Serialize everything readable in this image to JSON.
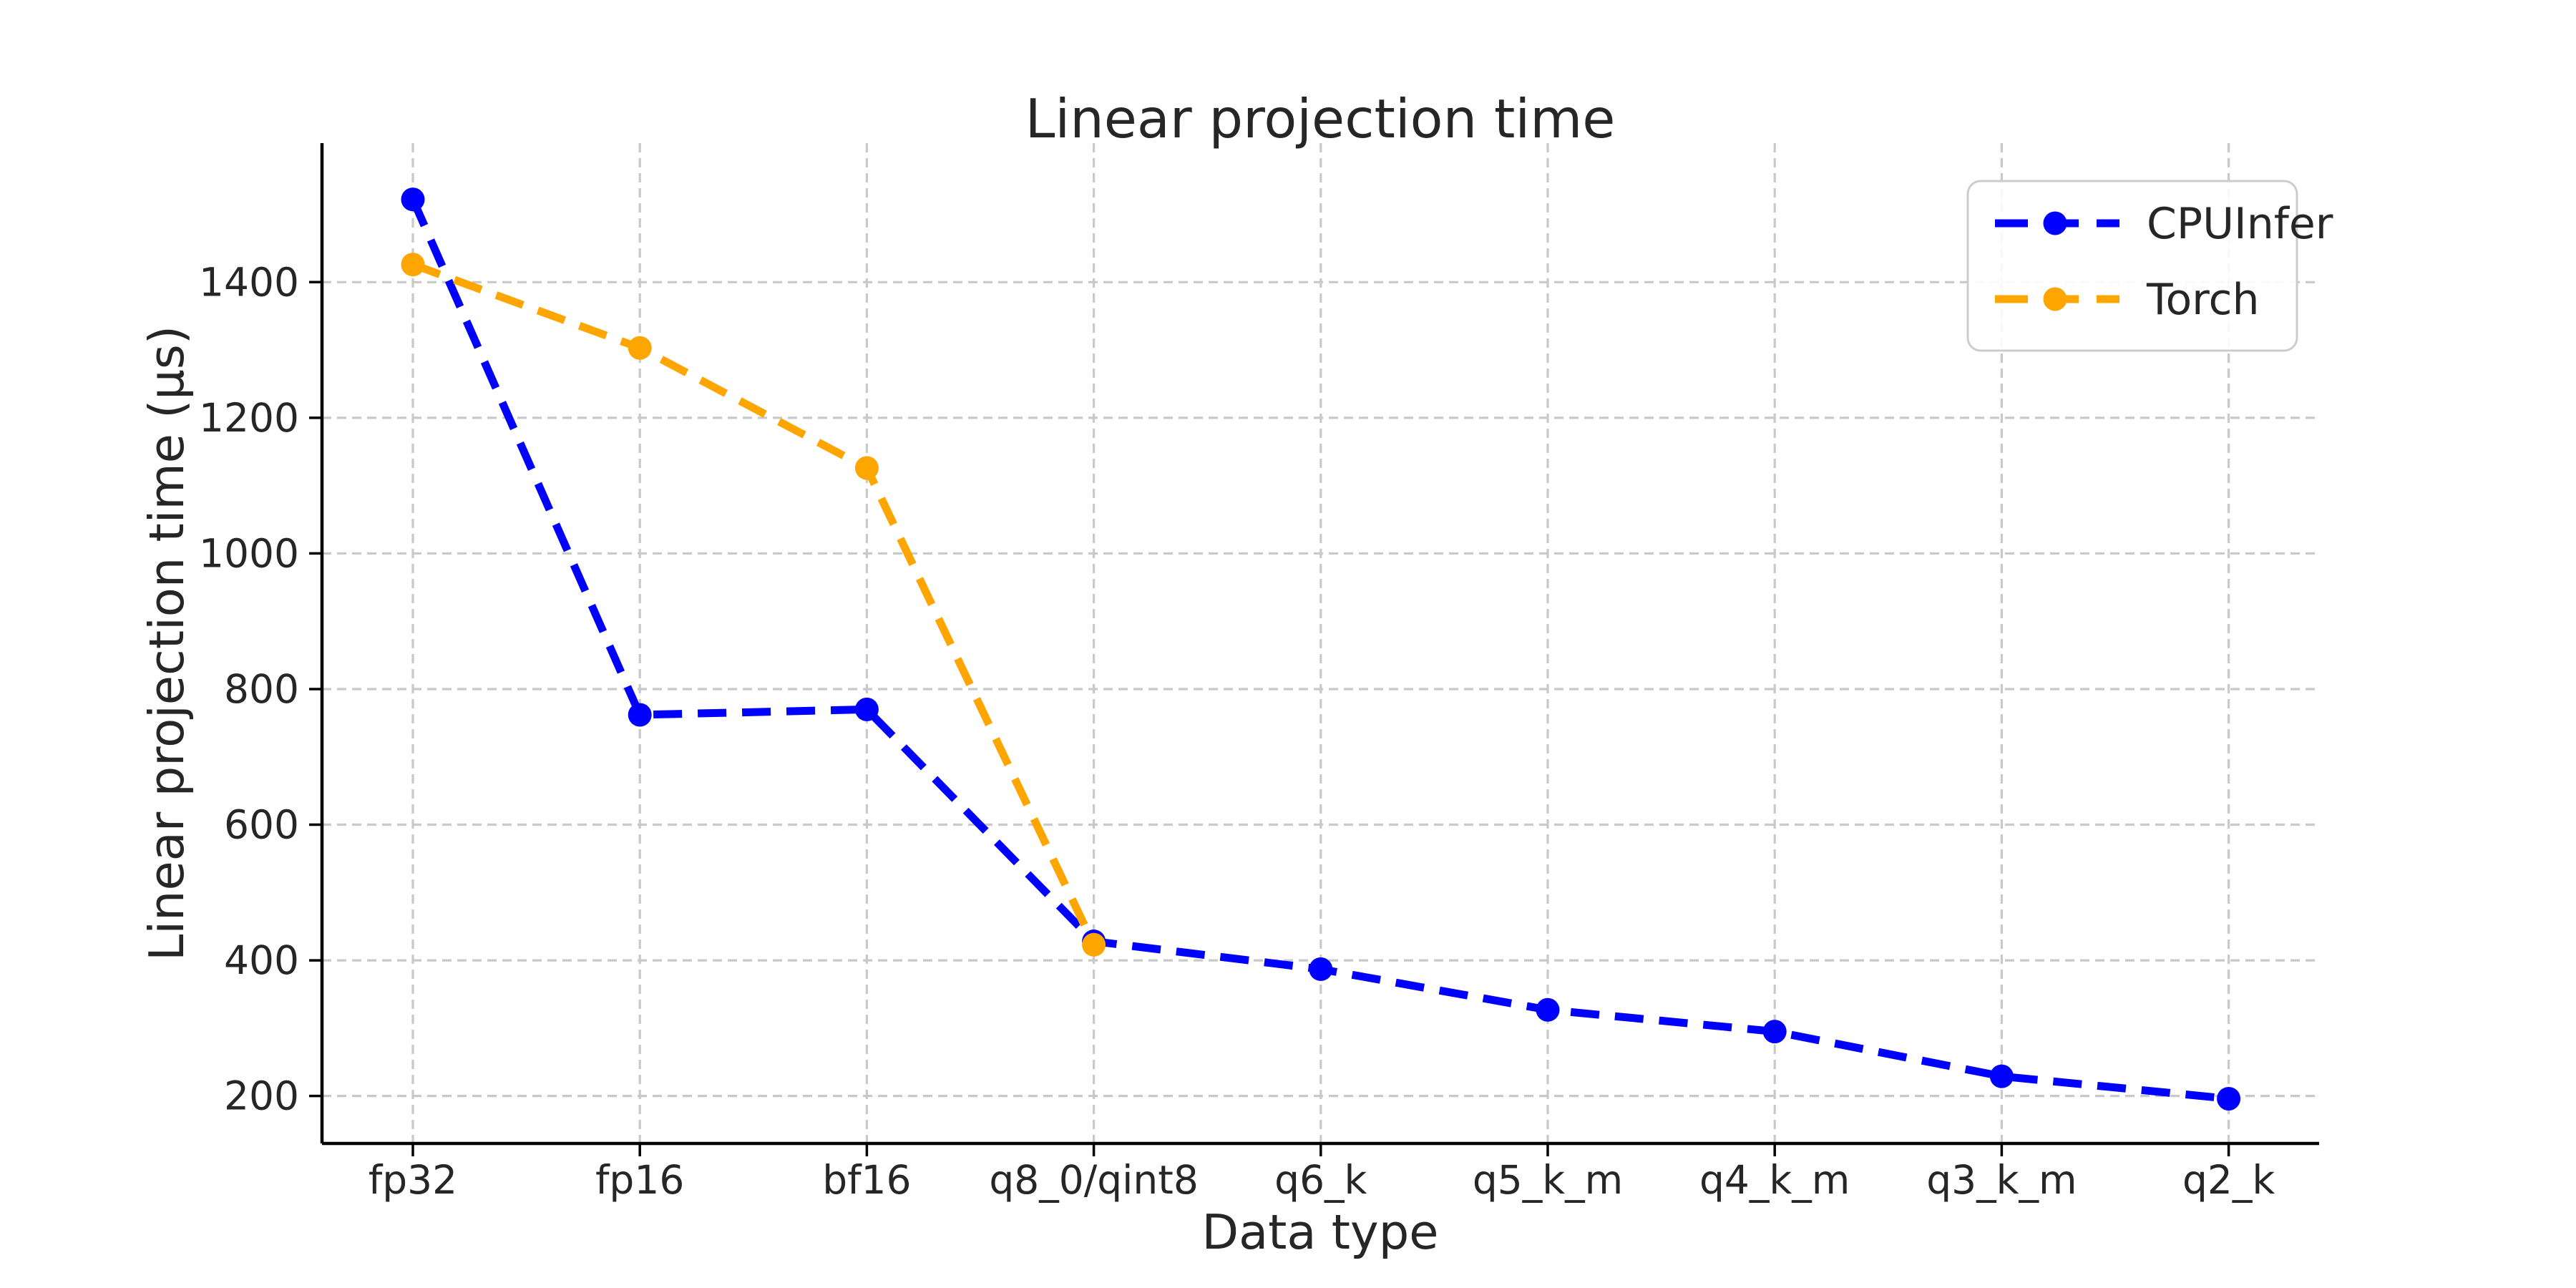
{
  "chart_data": {
    "type": "line",
    "title": "Linear projection time",
    "xlabel": "Data type",
    "ylabel": "Linear projection time (μs)",
    "categories": [
      "fp32",
      "fp16",
      "bf16",
      "q8_0/qint8",
      "q6_k",
      "q5_k_m",
      "q4_k_m",
      "q3_k_m",
      "q2_k"
    ],
    "y_ticks": [
      200,
      400,
      600,
      800,
      1000,
      1200,
      1400
    ],
    "ylim": [
      130,
      1605
    ],
    "grid": true,
    "grid_style": "dashed",
    "legend_position": "upper right",
    "line_style": "dashed",
    "marker": "circle",
    "series": [
      {
        "name": "CPUInfer",
        "color": "#0000ff",
        "values": [
          1522,
          762,
          770,
          428,
          387,
          327,
          295,
          229,
          196
        ]
      },
      {
        "name": "Torch",
        "color": "#ffa500",
        "values": [
          1426,
          1303,
          1126,
          423,
          null,
          null,
          null,
          null,
          null
        ]
      }
    ],
    "colors": {
      "grid": "#c9c9c9",
      "spine": "#000000",
      "text": "#262626",
      "legend_border": "#cccccc"
    }
  }
}
